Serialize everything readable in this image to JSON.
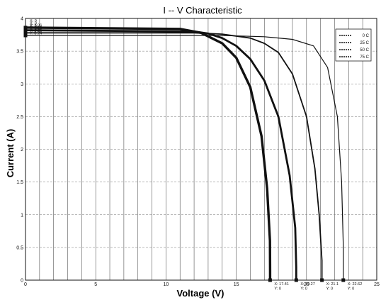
{
  "chart_data": {
    "type": "line",
    "title": "I -- V Characteristic",
    "xlabel": "Voltage (V)",
    "ylabel": "Current (A)",
    "xlim": [
      0,
      25
    ],
    "ylim": [
      0,
      4
    ],
    "xticks": [
      0,
      5,
      10,
      15,
      20,
      25
    ],
    "yticks": [
      0,
      0.5,
      1,
      1.5,
      2,
      2.5,
      3,
      3.5,
      4
    ],
    "grid": true,
    "legend_position": "top-right",
    "series": [
      {
        "name": "0 C",
        "color": "#111111",
        "x": [
          0,
          14,
          17,
          19,
          20.5,
          21.5,
          22.2,
          22.5,
          22.62,
          22.62
        ],
        "y": [
          3.74,
          3.74,
          3.72,
          3.68,
          3.58,
          3.25,
          2.5,
          1.5,
          0.5,
          0
        ]
      },
      {
        "name": "25 C",
        "color": "#111111",
        "x": [
          0,
          12,
          14,
          16,
          17,
          18,
          19,
          20,
          20.6,
          20.9,
          21.1,
          21.1
        ],
        "y": [
          3.78,
          3.78,
          3.76,
          3.7,
          3.62,
          3.48,
          3.15,
          2.5,
          1.7,
          1.0,
          0.3,
          0
        ]
      },
      {
        "name": "50 C",
        "color": "#111111",
        "x": [
          0,
          12,
          13,
          14,
          15,
          16,
          17,
          18,
          18.8,
          19.2,
          19.27,
          19.27
        ],
        "y": [
          3.82,
          3.8,
          3.77,
          3.7,
          3.58,
          3.38,
          3.05,
          2.5,
          1.6,
          0.8,
          0.2,
          0
        ]
      },
      {
        "name": "75 C",
        "color": "#111111",
        "x": [
          0,
          11,
          12.5,
          14,
          15,
          16,
          16.8,
          17.2,
          17.4,
          17.41,
          17.41
        ],
        "y": [
          3.86,
          3.84,
          3.78,
          3.62,
          3.4,
          2.95,
          2.2,
          1.4,
          0.6,
          0.15,
          0
        ]
      }
    ],
    "data_tips": [
      {
        "lines": [
          "X: 0",
          "Y: 3.86"
        ],
        "x": 0,
        "y": 3.86
      },
      {
        "lines": [
          "X: 0",
          "Y: 3.82"
        ],
        "x": 0,
        "y": 3.82
      },
      {
        "lines": [
          "X: 0",
          "Y: 3.78"
        ],
        "x": 0,
        "y": 3.78
      },
      {
        "lines": [
          "X: 0",
          "Y: 3.74"
        ],
        "x": 0,
        "y": 3.74
      },
      {
        "lines": [
          "X: 17.41",
          "Y: 0"
        ],
        "x": 17.41,
        "y": 0
      },
      {
        "lines": [
          "X: 19.27",
          "Y: 0"
        ],
        "x": 19.27,
        "y": 0
      },
      {
        "lines": [
          "X: 21.1",
          "Y: 0"
        ],
        "x": 21.1,
        "y": 0
      },
      {
        "lines": [
          "X: 22.62",
          "Y: 0"
        ],
        "x": 22.62,
        "y": 0
      }
    ]
  }
}
